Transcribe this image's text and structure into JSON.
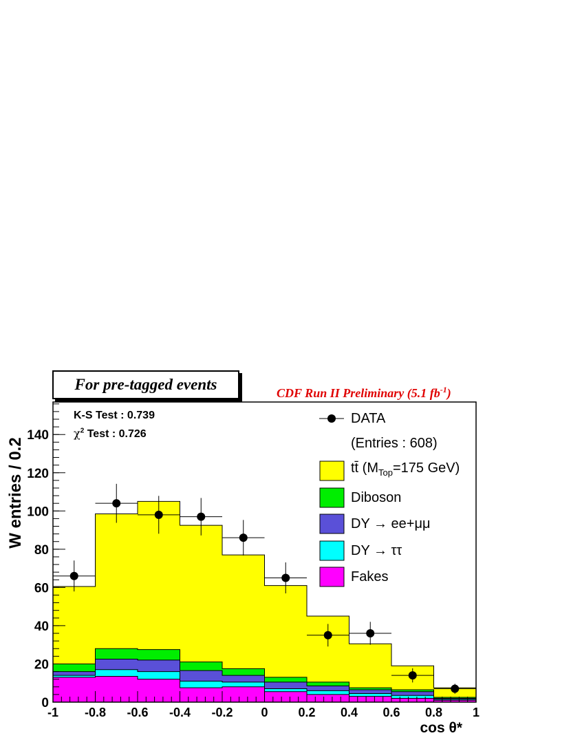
{
  "header": {
    "tag_label": "For pre-tagged events",
    "cdf_label": "CDF Run II Preliminary (5.1 fb",
    "cdf_exp": "-1",
    "cdf_close": ")"
  },
  "stats": {
    "ks": "K-S Test : 0.739",
    "chi2_symbol": "χ",
    "chi2_exp": "2",
    "chi2_text": "Test  : 0.726"
  },
  "legend": {
    "data": "DATA",
    "entries": "(Entries : 608)",
    "ttbar_pre": "tt̄ (M",
    "ttbar_sub": "Top",
    "ttbar_post": "=175 GeV)",
    "diboson": "Diboson",
    "dyee": "DY → ee+μμ",
    "dytt": "DY → ττ",
    "fakes": "Fakes"
  },
  "colors": {
    "ttbar": "#ffff00",
    "diboson": "#00ee00",
    "dyee": "#5a50d8",
    "dytt": "#00ffff",
    "fakes": "#ff00ff"
  },
  "chart_data": {
    "type": "bar",
    "stacked": true,
    "xlabel": "cos θ*",
    "ylabel": "W entries / 0.2",
    "xlim": [
      -1,
      1
    ],
    "ylim": [
      0,
      157
    ],
    "bin_edges": [
      -1,
      -0.8,
      -0.6,
      -0.4,
      -0.2,
      0,
      0.2,
      0.4,
      0.6,
      0.8,
      1
    ],
    "xticks": [
      "-1",
      "-0.8",
      "-0.6",
      "-0.4",
      "-0.2",
      "0",
      "0.2",
      "0.4",
      "0.6",
      "0.8",
      "1"
    ],
    "yticks": [
      0,
      20,
      40,
      60,
      80,
      100,
      120,
      140
    ],
    "stack_cumulative": [
      {
        "name": "tt̄ (M_Top=175 GeV)",
        "key": "ttbar",
        "values": [
          60.5,
          98.5,
          105,
          92.5,
          77,
          61,
          45,
          30.5,
          19,
          7.5
        ]
      },
      {
        "name": "Diboson",
        "key": "diboson",
        "values": [
          20,
          28,
          27.5,
          21,
          17.5,
          13,
          10.5,
          7.5,
          6.5,
          2.5
        ]
      },
      {
        "name": "DY → ee+μμ",
        "key": "dyee",
        "values": [
          16,
          22.5,
          22,
          16.5,
          14,
          10.5,
          8.5,
          6.5,
          5.5,
          2
        ]
      },
      {
        "name": "DY → ττ",
        "key": "dytt",
        "values": [
          14,
          17,
          16,
          11,
          10.5,
          7,
          6,
          4.5,
          3.5,
          1.5
        ]
      },
      {
        "name": "Fakes",
        "key": "fakes",
        "values": [
          13,
          13.5,
          12,
          7.5,
          8,
          5.5,
          4,
          3,
          2,
          1
        ]
      }
    ],
    "data_points": {
      "name": "DATA",
      "x": [
        -0.9,
        -0.7,
        -0.5,
        -0.3,
        -0.1,
        0.1,
        0.3,
        0.5,
        0.7,
        0.9
      ],
      "y": [
        66,
        104,
        98,
        97,
        86,
        65,
        35,
        36,
        14,
        7
      ],
      "yerr": [
        8.1,
        10.2,
        9.9,
        9.8,
        9.3,
        8.1,
        5.9,
        6,
        3.7,
        2.6
      ]
    }
  }
}
